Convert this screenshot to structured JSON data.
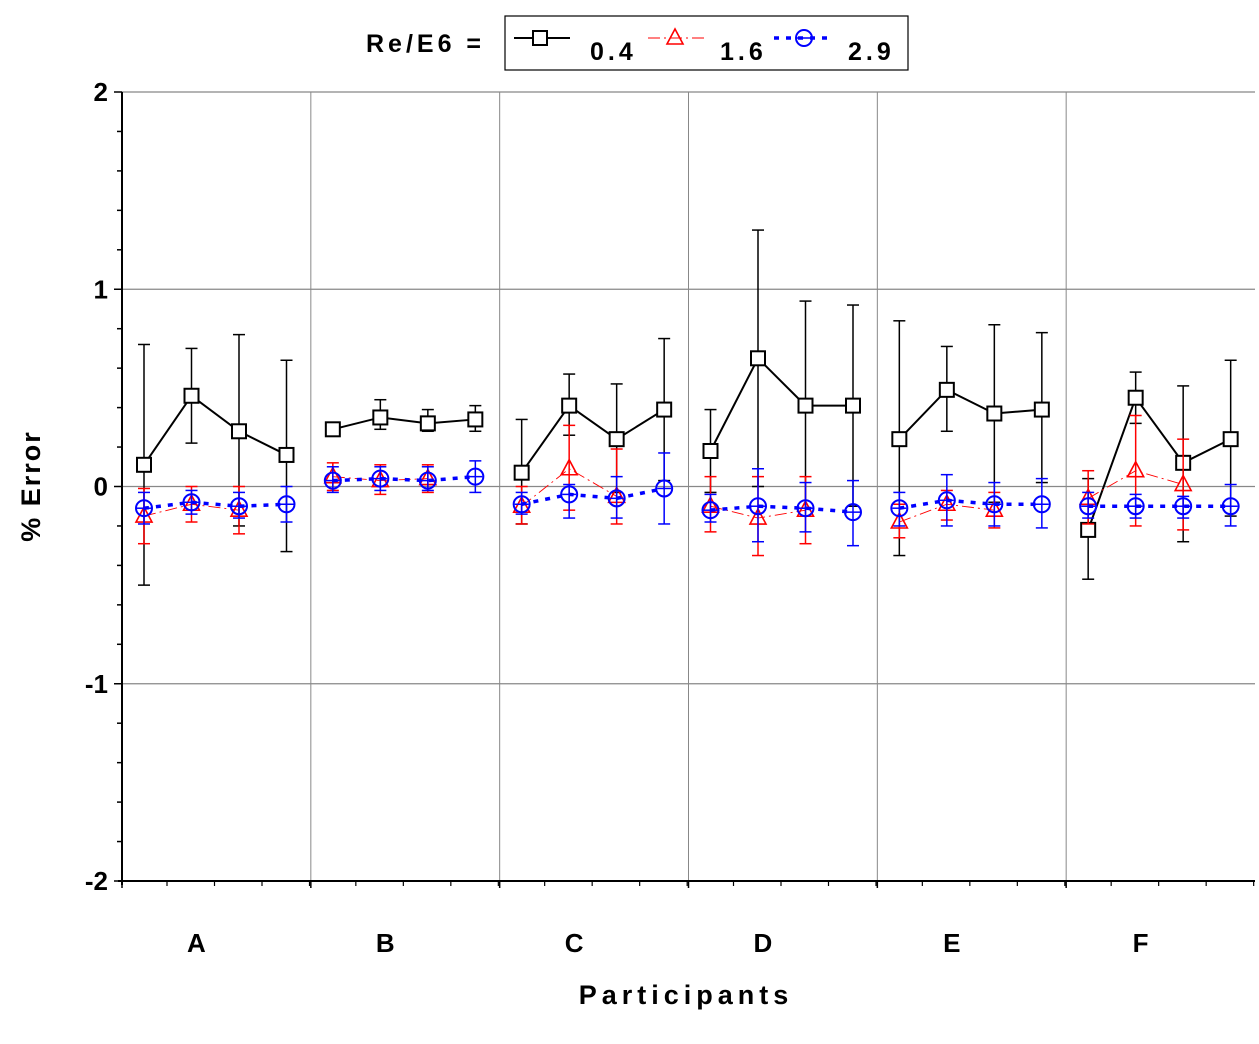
{
  "chart_data": {
    "type": "line",
    "xlabel": "Participants",
    "ylabel": "% Error",
    "ylim": [
      -2,
      2
    ],
    "yticks": [
      "2",
      "1",
      "0",
      "-1",
      "-2"
    ],
    "grid": true,
    "legend": {
      "prefix": "Re/E6 =",
      "placement": "top-center",
      "entries": [
        {
          "label": "0.4",
          "marker": "square",
          "color": "#000000",
          "line": "solid"
        },
        {
          "label": "1.6",
          "marker": "triangle",
          "color": "#ff0000",
          "line": "dash-dot"
        },
        {
          "label": "2.9",
          "marker": "circle",
          "color": "#0000ff",
          "line": "dotted"
        }
      ]
    },
    "categories": [
      "A",
      "B",
      "C",
      "D",
      "E",
      "F"
    ],
    "points_per_category": 4,
    "series": [
      {
        "name": "0.4",
        "groups": [
          {
            "values": [
              0.11,
              0.46,
              0.28,
              0.16
            ],
            "upper": [
              0.72,
              0.7,
              0.77,
              0.64
            ],
            "lower": [
              -0.5,
              0.22,
              -0.2,
              -0.33
            ]
          },
          {
            "values": [
              0.29,
              0.35,
              0.32,
              0.34
            ],
            "upper": [
              0.31,
              0.44,
              0.39,
              0.41
            ],
            "lower": [
              0.27,
              0.29,
              0.28,
              0.28
            ]
          },
          {
            "values": [
              0.07,
              0.41,
              0.24,
              0.39
            ],
            "upper": [
              0.34,
              0.57,
              0.52,
              0.75
            ],
            "lower": [
              -0.19,
              0.26,
              -0.03,
              0.03
            ]
          },
          {
            "values": [
              0.18,
              0.65,
              0.41,
              0.41
            ],
            "upper": [
              0.39,
              1.3,
              0.94,
              0.92
            ],
            "lower": [
              -0.03,
              0.0,
              -0.11,
              -0.1
            ]
          },
          {
            "values": [
              0.24,
              0.49,
              0.37,
              0.39
            ],
            "upper": [
              0.84,
              0.71,
              0.82,
              0.78
            ],
            "lower": [
              -0.35,
              0.28,
              -0.08,
              0.02
            ]
          },
          {
            "values": [
              -0.22,
              0.45,
              0.12,
              0.24
            ],
            "upper": [
              0.04,
              0.58,
              0.51,
              0.64
            ],
            "lower": [
              -0.47,
              0.32,
              -0.28,
              -0.15
            ]
          }
        ]
      },
      {
        "name": "1.6",
        "groups": [
          {
            "values": [
              -0.15,
              -0.09,
              -0.12,
              null
            ],
            "upper": [
              -0.01,
              0.0,
              0.0,
              null
            ],
            "lower": [
              -0.29,
              -0.18,
              -0.24,
              null
            ]
          },
          {
            "values": [
              0.05,
              0.03,
              0.04,
              null
            ],
            "upper": [
              0.12,
              0.11,
              0.11,
              null
            ],
            "lower": [
              -0.02,
              -0.04,
              -0.03,
              null
            ]
          },
          {
            "values": [
              -0.1,
              0.09,
              -0.05,
              null
            ],
            "upper": [
              0.0,
              0.31,
              0.19,
              null
            ],
            "lower": [
              -0.19,
              -0.12,
              -0.19,
              null
            ]
          },
          {
            "values": [
              -0.1,
              -0.16,
              -0.12,
              null
            ],
            "upper": [
              0.05,
              0.05,
              0.05,
              null
            ],
            "lower": [
              -0.23,
              -0.35,
              -0.29,
              null
            ]
          },
          {
            "values": [
              -0.18,
              -0.09,
              -0.12,
              null
            ],
            "upper": [
              -0.09,
              -0.02,
              -0.03,
              null
            ],
            "lower": [
              -0.26,
              -0.17,
              -0.21,
              null
            ]
          },
          {
            "values": [
              -0.06,
              0.08,
              0.01,
              null
            ],
            "upper": [
              0.08,
              0.36,
              0.24,
              null
            ],
            "lower": [
              -0.19,
              -0.2,
              -0.22,
              null
            ]
          }
        ]
      },
      {
        "name": "2.9",
        "groups": [
          {
            "values": [
              -0.11,
              -0.08,
              -0.1,
              -0.09
            ],
            "upper": [
              -0.03,
              -0.02,
              -0.03,
              0.0
            ],
            "lower": [
              -0.19,
              -0.14,
              -0.16,
              -0.18
            ]
          },
          {
            "values": [
              0.03,
              0.04,
              0.03,
              0.05
            ],
            "upper": [
              0.1,
              0.1,
              0.1,
              0.13
            ],
            "lower": [
              -0.03,
              -0.02,
              -0.02,
              -0.03
            ]
          },
          {
            "values": [
              -0.09,
              -0.04,
              -0.06,
              -0.01
            ],
            "upper": [
              -0.03,
              0.01,
              0.05,
              0.17
            ],
            "lower": [
              -0.14,
              -0.16,
              -0.16,
              -0.19
            ]
          },
          {
            "values": [
              -0.12,
              -0.1,
              -0.11,
              -0.13
            ],
            "upper": [
              -0.04,
              0.09,
              0.02,
              0.03
            ],
            "lower": [
              -0.18,
              -0.28,
              -0.23,
              -0.3
            ]
          },
          {
            "values": [
              -0.11,
              -0.07,
              -0.09,
              -0.09
            ],
            "upper": [
              -0.03,
              0.06,
              0.02,
              0.04
            ],
            "lower": [
              -0.2,
              -0.2,
              -0.2,
              -0.21
            ]
          },
          {
            "values": [
              -0.1,
              -0.1,
              -0.1,
              -0.1
            ],
            "upper": [
              -0.03,
              -0.04,
              -0.05,
              0.01
            ],
            "lower": [
              -0.16,
              -0.16,
              -0.16,
              -0.2
            ]
          }
        ]
      }
    ]
  }
}
